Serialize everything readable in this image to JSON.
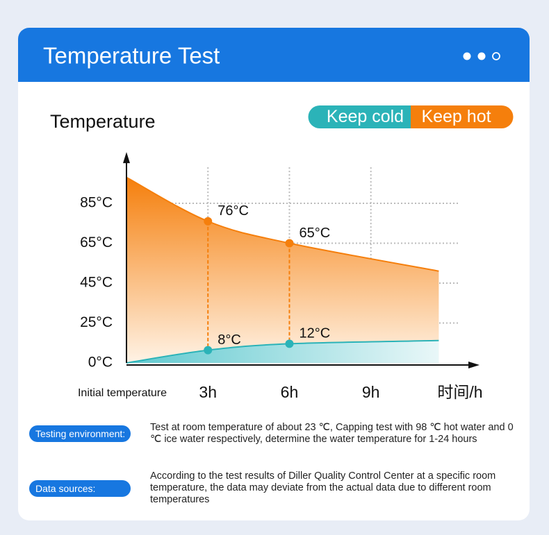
{
  "header": {
    "title": "Temperature Test"
  },
  "chart_data": {
    "type": "area",
    "ylabel": "Temperature",
    "xlabel": "时间/h",
    "x": [
      0,
      3,
      6,
      11.5
    ],
    "xlim": [
      0,
      13
    ],
    "xticks": [
      {
        "value": 0,
        "label": "Initial temperature"
      },
      {
        "value": 3,
        "label": "3h"
      },
      {
        "value": 6,
        "label": "6h"
      },
      {
        "value": 9,
        "label": "9h"
      }
    ],
    "ylim": [
      0,
      110
    ],
    "yticks": [
      {
        "value": 0,
        "label": "0°C"
      },
      {
        "value": 25,
        "label": "25°C"
      },
      {
        "value": 45,
        "label": "45°C"
      },
      {
        "value": 65,
        "label": "65°C"
      },
      {
        "value": 85,
        "label": "85°C"
      }
    ],
    "grid": true,
    "legend": "top-right",
    "series": [
      {
        "name": "Keep cold",
        "color": "#2bb3b8",
        "values": [
          0,
          8,
          12,
          14
        ],
        "value_labels": [
          null,
          "8°C",
          "12°C",
          null
        ]
      },
      {
        "name": "Keep hot",
        "color": "#f57f0c",
        "values": [
          98,
          76,
          65,
          51
        ],
        "value_labels": [
          null,
          "76°C",
          "65°C",
          null
        ]
      }
    ]
  },
  "notes": [
    {
      "label": "Testing environment:",
      "text": "Test at room temperature of about 23 ℃, Capping test with 98 ℃ hot water and 0 ℃ ice water respectively, determine the water temperature for 1-24 hours"
    },
    {
      "label": "Data sources:",
      "text": "According to the test results of Diller Quality Control Center at a specific room temperature, the data may deviate from the actual data due to different room temperatures"
    }
  ]
}
